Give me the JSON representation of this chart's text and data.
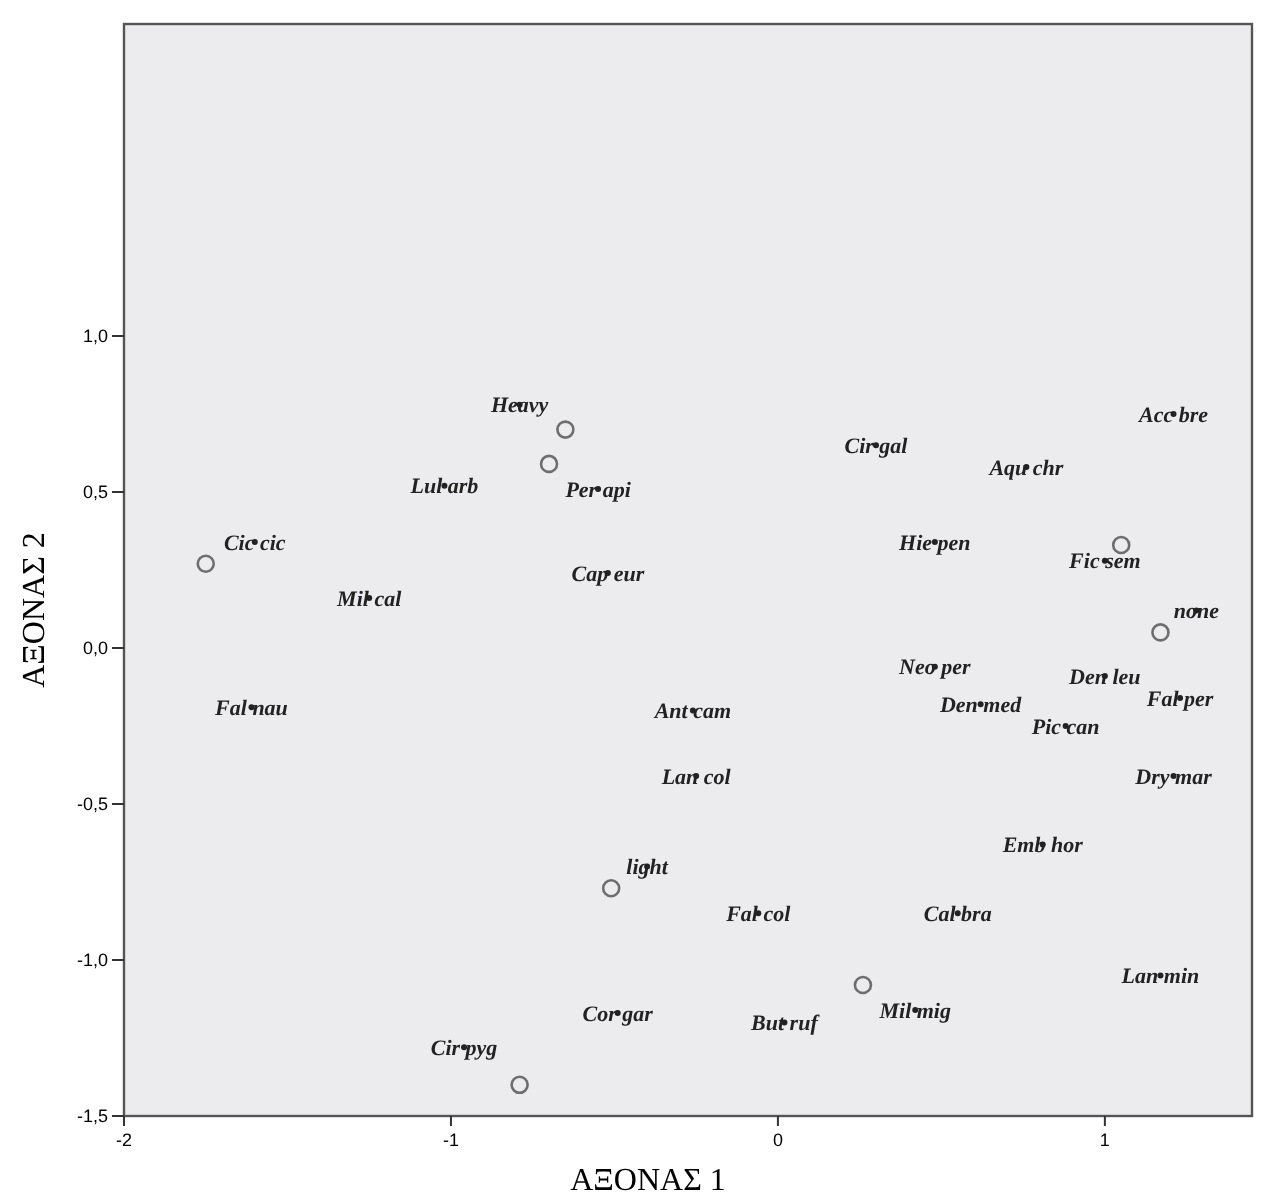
{
  "chart_data": {
    "type": "scatter",
    "xlabel": "ΑΞΟΝΑΣ 1",
    "ylabel": "ΑΞΟΝΑΣ 2",
    "xlim": [
      -2,
      1.45
    ],
    "ylim": [
      -1.5,
      2.0
    ],
    "xticks": [
      -2,
      -1,
      0,
      1
    ],
    "yticks": [
      {
        "value": -1.5,
        "label": "-1,5"
      },
      {
        "value": -1.0,
        "label": "-1,0"
      },
      {
        "value": -0.5,
        "label": "-0,5"
      },
      {
        "value": 0,
        "label": "0,0"
      },
      {
        "value": 0.5,
        "label": "0,5"
      },
      {
        "value": 1.0,
        "label": "1,0"
      }
    ],
    "marker": "circle",
    "series": [
      {
        "color": "#6e6e6e",
        "x": [
          -0.65,
          -0.7,
          -1.75,
          1.05,
          1.17,
          -0.51,
          0.26,
          -0.79
        ],
        "values": [
          0.7,
          0.59,
          0.27,
          0.33,
          0.05,
          -0.77,
          -1.08,
          -1.4
        ]
      },
      {
        "color": "#222222",
        "marker": "dot",
        "x": [
          -0.79,
          -1.02,
          -0.55,
          -1.6,
          -0.52,
          0.3,
          0.76,
          1.21,
          0.48,
          1.0,
          -1.25,
          1.28,
          0.48,
          1.0,
          1.23,
          -1.61,
          -0.26,
          0.62,
          0.88,
          -0.25,
          1.21,
          0.81,
          -0.4,
          -0.06,
          0.55,
          1.17,
          0.42,
          -0.49,
          0.02,
          -0.96
        ],
        "values": [
          0.78,
          0.52,
          0.51,
          0.34,
          0.24,
          0.65,
          0.58,
          0.75,
          0.34,
          0.28,
          0.16,
          0.12,
          -0.06,
          -0.09,
          -0.16,
          -0.19,
          -0.2,
          -0.18,
          -0.25,
          -0.41,
          -0.41,
          -0.63,
          -0.7,
          -0.85,
          -0.85,
          -1.05,
          -1.16,
          -1.17,
          -1.2,
          -1.28
        ],
        "value_labels": [
          "Heavy",
          "Lul arb",
          "Per api",
          "Cic cic",
          "Cap eur",
          "Cir gal",
          "Aqu chr",
          "Acc bre",
          "Hie pen",
          "Fic sem",
          "Mil cal",
          "none",
          "Neo per",
          "Den leu",
          "Fal per",
          "Fal nau",
          "Ant cam",
          "Den med",
          "Pic can",
          "Lan col",
          "Dry mar",
          "Emb hor",
          "light",
          "Fal col",
          "Cal bra",
          "Lan min",
          "Mil mig",
          "Cor gar",
          "But ruf",
          "Cir pyg"
        ]
      }
    ]
  }
}
